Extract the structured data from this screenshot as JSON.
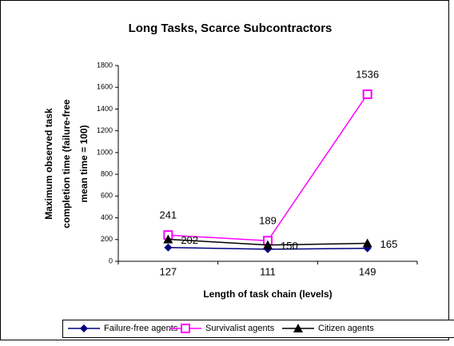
{
  "chart_data": {
    "type": "line",
    "title": "Long Tasks, Scarce Subcontractors",
    "x_label": "Length of task chain (levels)",
    "y_label": [
      "Maximum observed task",
      "completion time (failure-free",
      "mean time = 100)"
    ],
    "categories": [
      "127",
      "111",
      "149"
    ],
    "series": [
      {
        "name": "Failure-free agents",
        "color": "#000080",
        "marker": "diamond",
        "values": [
          127,
          111,
          119
        ],
        "show_labels": false
      },
      {
        "name": "Survivalist agents",
        "color": "#ff00ff",
        "marker": "square",
        "values": [
          241,
          189,
          1536
        ],
        "show_labels": true,
        "label_pos": "above"
      },
      {
        "name": "Citizen agents",
        "color": "#000000",
        "marker": "triangle",
        "values": [
          202,
          150,
          165
        ],
        "show_labels": true,
        "label_pos": "right"
      }
    ],
    "ylim": [
      0,
      1800
    ],
    "yticks": [
      0,
      200,
      400,
      600,
      800,
      1000,
      1200,
      1400,
      1600,
      1800
    ],
    "grid": false
  }
}
